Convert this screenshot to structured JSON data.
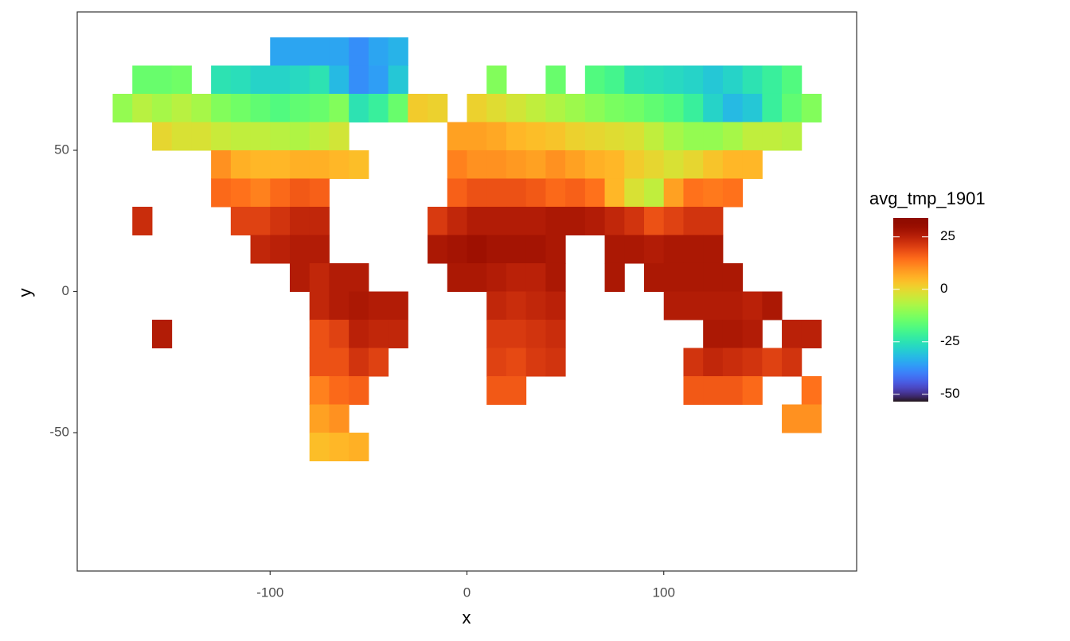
{
  "chart_data": {
    "type": "raster",
    "x_label": "x",
    "y_label": "y",
    "legend_title": "avg_tmp_1901",
    "colormap": "turbo",
    "colorlim": [
      -53.5,
      34
    ],
    "colorticks": [
      -50,
      -25,
      0,
      25
    ],
    "xlim": [
      -198,
      198
    ],
    "ylim": [
      -99,
      99
    ],
    "xticks": [
      -100,
      0,
      100
    ],
    "yticks": [
      -50,
      0,
      50
    ],
    "grid": false,
    "cell_size": 10,
    "x": [
      -175,
      -165,
      -155,
      -145,
      -135,
      -125,
      -115,
      -105,
      -95,
      -85,
      -75,
      -65,
      -55,
      -45,
      -35,
      -25,
      -15,
      -5,
      5,
      15,
      25,
      35,
      45,
      55,
      65,
      75,
      85,
      95,
      105,
      115,
      125,
      135,
      145,
      155,
      165,
      175
    ],
    "y": [
      85,
      75,
      65,
      55,
      45,
      35,
      25,
      15,
      5,
      -5,
      -15,
      -25,
      -35,
      -45,
      -55
    ],
    "values": [
      [
        null,
        null,
        null,
        null,
        null,
        null,
        null,
        null,
        -35,
        -35,
        -35,
        -35,
        -38,
        -35,
        -33,
        null,
        null,
        null,
        null,
        null,
        null,
        null,
        null,
        null,
        null,
        null,
        null,
        null,
        null,
        null,
        null,
        null,
        null,
        null,
        null,
        null
      ],
      [
        null,
        -15,
        -15,
        -14,
        null,
        -25,
        -26,
        -28,
        -28,
        -27,
        -25,
        -32,
        -38,
        -36,
        -30,
        null,
        null,
        null,
        null,
        -12,
        null,
        null,
        -15,
        null,
        -18,
        -20,
        -25,
        -26,
        -27,
        -28,
        -30,
        -28,
        -25,
        -22,
        -18,
        null
      ],
      [
        -10,
        -6,
        -8,
        -6,
        -8,
        -12,
        -14,
        -16,
        -18,
        -16,
        -15,
        -12,
        -25,
        -22,
        -15,
        2,
        1,
        null,
        1,
        -1,
        -3,
        -5,
        -7,
        -9,
        -11,
        -13,
        -14,
        -16,
        -18,
        -22,
        -28,
        -32,
        -30,
        -22,
        -16,
        -12
      ],
      [
        null,
        null,
        0,
        -2,
        -2,
        -4,
        -5,
        -5,
        -6,
        -7,
        -5,
        -3,
        null,
        null,
        null,
        null,
        null,
        8,
        8,
        7,
        5,
        4,
        3,
        1,
        0,
        -1,
        -2,
        -5,
        -8,
        -10,
        -10,
        -8,
        -5,
        -5,
        -6,
        null
      ],
      [
        null,
        null,
        null,
        null,
        null,
        10,
        6,
        5,
        5,
        6,
        6,
        5,
        4,
        null,
        null,
        null,
        null,
        12,
        10,
        10,
        9,
        8,
        10,
        8,
        6,
        5,
        2,
        0,
        -2,
        0,
        3,
        5,
        5,
        null,
        null,
        null
      ],
      [
        null,
        null,
        null,
        null,
        null,
        15,
        14,
        12,
        15,
        17,
        16,
        null,
        null,
        null,
        null,
        null,
        null,
        16,
        18,
        18,
        18,
        17,
        15,
        16,
        14,
        5,
        -2,
        -5,
        8,
        14,
        13,
        14,
        null,
        null,
        null,
        null
      ],
      [
        null,
        23,
        null,
        null,
        null,
        null,
        20,
        20,
        22,
        24,
        24,
        null,
        null,
        null,
        null,
        null,
        21,
        24,
        26,
        26,
        26,
        26,
        27,
        27,
        26,
        24,
        22,
        18,
        20,
        22,
        22,
        null,
        null,
        null,
        null,
        null
      ],
      [
        null,
        null,
        null,
        null,
        null,
        null,
        null,
        24,
        25,
        26,
        26,
        null,
        null,
        null,
        null,
        null,
        27,
        28,
        29,
        28,
        28,
        28,
        27,
        null,
        null,
        27,
        27,
        26,
        27,
        27,
        27,
        null,
        null,
        null,
        null,
        null
      ],
      [
        null,
        null,
        null,
        null,
        null,
        null,
        null,
        null,
        null,
        26,
        24,
        26,
        26,
        null,
        null,
        null,
        null,
        27,
        27,
        26,
        25,
        25,
        27,
        null,
        null,
        27,
        null,
        27,
        27,
        27,
        27,
        27,
        null,
        null,
        null,
        null
      ],
      [
        null,
        null,
        null,
        null,
        null,
        null,
        null,
        null,
        null,
        null,
        24,
        26,
        27,
        26,
        26,
        null,
        null,
        null,
        null,
        24,
        23,
        24,
        25,
        null,
        null,
        null,
        null,
        null,
        26,
        26,
        26,
        26,
        25,
        27,
        null,
        null
      ],
      [
        null,
        null,
        26,
        null,
        null,
        null,
        null,
        null,
        null,
        null,
        18,
        20,
        25,
        24,
        24,
        null,
        null,
        null,
        null,
        21,
        21,
        22,
        23,
        null,
        null,
        null,
        null,
        null,
        null,
        null,
        27,
        27,
        26,
        null,
        25,
        25
      ],
      [
        null,
        null,
        null,
        null,
        null,
        null,
        null,
        null,
        null,
        null,
        18,
        18,
        22,
        20,
        null,
        null,
        null,
        null,
        null,
        20,
        19,
        21,
        22,
        null,
        null,
        null,
        null,
        null,
        null,
        22,
        24,
        23,
        22,
        20,
        22,
        null
      ],
      [
        null,
        null,
        null,
        null,
        null,
        null,
        null,
        null,
        null,
        null,
        12,
        15,
        16,
        null,
        null,
        null,
        null,
        null,
        null,
        17,
        17,
        null,
        null,
        null,
        null,
        null,
        null,
        null,
        null,
        17,
        17,
        17,
        15,
        null,
        null,
        14
      ],
      [
        null,
        null,
        null,
        null,
        null,
        null,
        null,
        null,
        null,
        null,
        8,
        10,
        null,
        null,
        null,
        null,
        null,
        null,
        null,
        null,
        null,
        null,
        null,
        null,
        null,
        null,
        null,
        null,
        null,
        null,
        null,
        null,
        null,
        null,
        10,
        10
      ],
      [
        null,
        null,
        null,
        null,
        null,
        null,
        null,
        null,
        null,
        null,
        4,
        5,
        6,
        null,
        null,
        null,
        null,
        null,
        null,
        null,
        null,
        null,
        null,
        null,
        null,
        null,
        null,
        null,
        null,
        null,
        null,
        null,
        null,
        null,
        null,
        null
      ]
    ]
  }
}
